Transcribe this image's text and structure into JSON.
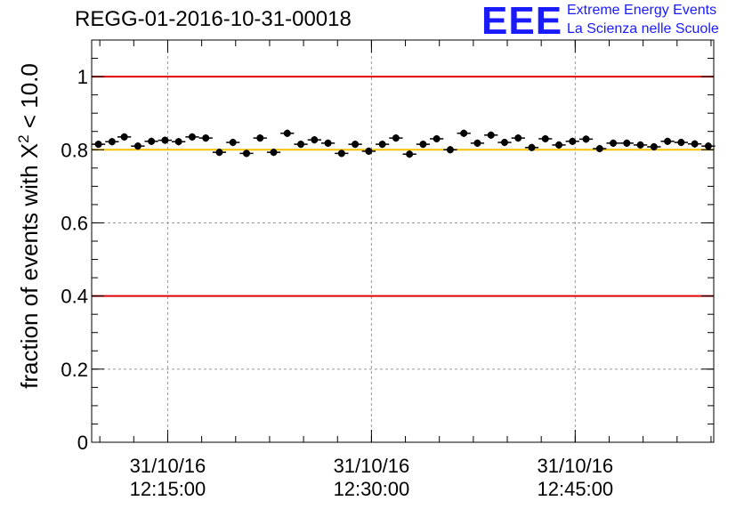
{
  "header": {
    "run_title": "REGG-01-2016-10-31-00018",
    "logo_text": "EEE",
    "logo_line1": "Extreme Energy Events",
    "logo_line2": "La Scienza nelle Scuole"
  },
  "colors": {
    "limit_red": "#e00000",
    "reference_yellow": "#f5c000",
    "grid": "#999999",
    "marker": "#000000",
    "logo_blue": "#1a1aff"
  },
  "chart_data": {
    "type": "scatter",
    "title": "REGG-01-2016-10-31-00018",
    "xlabel": "",
    "ylabel_prefix": "fraction of events with ",
    "ylabel_symbol": "X",
    "ylabel_exponent": "2",
    "ylabel_suffix": " < 10.0",
    "ylim": [
      0,
      1.1
    ],
    "xlim_minutes": [
      8.4,
      54.2
    ],
    "yticks": [
      {
        "value": 0,
        "label": "0"
      },
      {
        "value": 0.2,
        "label": "0.2"
      },
      {
        "value": 0.4,
        "label": "0.4"
      },
      {
        "value": 0.6,
        "label": "0.6"
      },
      {
        "value": 0.8,
        "label": "0.8"
      },
      {
        "value": 1.0,
        "label": "1"
      }
    ],
    "xticks": [
      {
        "minutes": 14,
        "date": "31/10/16",
        "time": "12:15:00"
      },
      {
        "minutes": 29,
        "date": "31/10/16",
        "time": "12:30:00"
      },
      {
        "minutes": 44,
        "date": "31/10/16",
        "time": "12:45:00"
      }
    ],
    "hlines": [
      {
        "value": 1.0,
        "color": "#e00000"
      },
      {
        "value": 0.4,
        "color": "#e00000"
      },
      {
        "value": 0.8,
        "color": "#f5c000"
      }
    ],
    "grid": true,
    "x_error_minutes": 0.5,
    "y_error": 0.01,
    "series": [
      {
        "name": "fraction",
        "x": [
          8.9,
          9.9,
          10.8,
          11.8,
          12.8,
          13.8,
          14.8,
          15.8,
          16.8,
          17.8,
          18.8,
          19.8,
          20.8,
          21.8,
          22.8,
          23.8,
          24.8,
          25.8,
          26.8,
          27.8,
          28.8,
          29.8,
          30.8,
          31.8,
          32.8,
          33.8,
          34.8,
          35.8,
          36.8,
          37.8,
          38.8,
          39.8,
          40.8,
          41.8,
          42.8,
          43.8,
          44.8,
          45.8,
          46.8,
          47.8,
          48.8,
          49.8,
          50.8,
          51.8,
          52.8,
          53.8
        ],
        "y": [
          0.815,
          0.822,
          0.835,
          0.81,
          0.823,
          0.826,
          0.822,
          0.835,
          0.832,
          0.793,
          0.82,
          0.79,
          0.832,
          0.793,
          0.845,
          0.815,
          0.827,
          0.818,
          0.79,
          0.815,
          0.796,
          0.815,
          0.832,
          0.788,
          0.815,
          0.83,
          0.8,
          0.845,
          0.818,
          0.84,
          0.82,
          0.832,
          0.806,
          0.83,
          0.813,
          0.823,
          0.829,
          0.803,
          0.818,
          0.818,
          0.813,
          0.808,
          0.823,
          0.82,
          0.816,
          0.81
        ]
      }
    ]
  }
}
